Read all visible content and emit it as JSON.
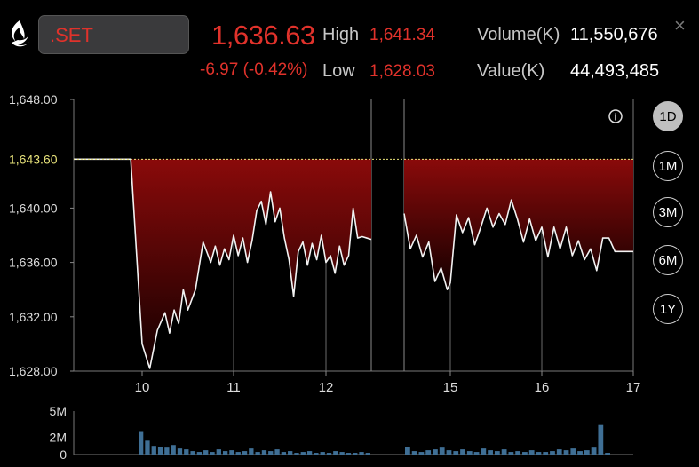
{
  "header": {
    "symbol": ".SET",
    "price": "1,636.63",
    "change": "-6.97 (-0.42%)",
    "high_label": "High",
    "high_value": "1,641.34",
    "low_label": "Low",
    "low_value": "1,628.03",
    "volume_label": "Volume(K)",
    "volume_value": "11,550,676",
    "value_label": "Value(K)",
    "value_value": "44,493,485",
    "close_glyph": "×",
    "info_glyph": "i"
  },
  "range_buttons": [
    {
      "label": "1D",
      "active": true
    },
    {
      "label": "1M",
      "active": false
    },
    {
      "label": "3M",
      "active": false
    },
    {
      "label": "6M",
      "active": false
    },
    {
      "label": "1Y",
      "active": false
    }
  ],
  "colors": {
    "down": "#e0322b",
    "prev_close": "#e8e37a",
    "fill_top": "#8a0a0a",
    "volume_bar": "#3f6f95"
  },
  "chart_data": [
    {
      "type": "area",
      "title": "",
      "x_ticks": [
        "10",
        "11",
        "12",
        "15",
        "16",
        "17"
      ],
      "y_ticks": [
        "1,628.00",
        "1,632.00",
        "1,636.00",
        "1,640.00",
        "1,648.00"
      ],
      "ylim": [
        1628,
        1648
      ],
      "prev_close": {
        "label": "1,643.60",
        "value": 1643.6
      },
      "x_range": [
        "09:30",
        "17:00"
      ],
      "series": [
        {
          "segment": "morning",
          "x": [
            "09:30",
            "09:55",
            "10:00",
            "10:05",
            "10:10",
            "10:15",
            "10:18",
            "10:21",
            "10:24",
            "10:27",
            "10:30",
            "10:35",
            "10:40",
            "10:45",
            "10:48",
            "10:51",
            "10:54",
            "10:57",
            "11:00",
            "11:03",
            "11:06",
            "11:09",
            "11:12",
            "11:15",
            "11:18",
            "11:21",
            "11:24",
            "11:27",
            "11:30",
            "11:33",
            "11:36",
            "11:39",
            "11:42",
            "11:45",
            "11:48",
            "11:51",
            "11:54",
            "11:57",
            "12:00",
            "12:03",
            "12:06",
            "12:09",
            "12:12",
            "12:15",
            "12:18",
            "12:21",
            "12:24",
            "12:27",
            "12:30"
          ],
          "values": [
            1643.6,
            1643.6,
            1630.0,
            1628.2,
            1631.0,
            1632.3,
            1630.8,
            1632.5,
            1631.5,
            1634.0,
            1632.5,
            1634.0,
            1637.5,
            1636.0,
            1637.2,
            1635.8,
            1637.0,
            1636.2,
            1638.0,
            1636.5,
            1637.8,
            1636.0,
            1637.6,
            1639.8,
            1640.5,
            1638.8,
            1641.2,
            1639.0,
            1640.0,
            1637.8,
            1636.2,
            1633.5,
            1636.8,
            1637.5,
            1635.8,
            1637.4,
            1636.2,
            1638.0,
            1636.0,
            1636.5,
            1635.2,
            1637.2,
            1635.8,
            1636.5,
            1640.0,
            1637.8,
            1637.9,
            1637.8,
            1637.7
          ]
        },
        {
          "segment": "afternoon",
          "x": [
            "14:30",
            "14:34",
            "14:38",
            "14:42",
            "14:46",
            "14:50",
            "14:54",
            "14:58",
            "15:00",
            "15:04",
            "15:08",
            "15:12",
            "15:16",
            "15:20",
            "15:24",
            "15:28",
            "15:32",
            "15:36",
            "15:40",
            "15:44",
            "15:48",
            "15:52",
            "15:56",
            "16:00",
            "16:04",
            "16:08",
            "16:12",
            "16:16",
            "16:20",
            "16:24",
            "16:28",
            "16:32",
            "16:36",
            "16:40",
            "16:44",
            "16:48",
            "16:52",
            "16:56",
            "17:00"
          ],
          "values": [
            1639.6,
            1637.0,
            1638.0,
            1636.4,
            1637.5,
            1634.6,
            1635.6,
            1634.0,
            1634.5,
            1639.5,
            1638.2,
            1639.3,
            1637.3,
            1638.6,
            1640.0,
            1638.6,
            1639.6,
            1638.8,
            1640.6,
            1639.2,
            1637.5,
            1639.2,
            1637.6,
            1638.6,
            1636.4,
            1638.6,
            1637.0,
            1638.6,
            1636.5,
            1637.6,
            1636.2,
            1637.0,
            1635.4,
            1637.8,
            1637.8,
            1636.8,
            1636.8,
            1636.8,
            1636.8
          ]
        }
      ]
    },
    {
      "type": "bar",
      "title": "",
      "y_ticks": [
        "0",
        "2M",
        "5M"
      ],
      "ylim": [
        0,
        5
      ],
      "series": [
        {
          "segment": "morning",
          "values": [
            2.6,
            1.6,
            1.0,
            0.9,
            0.8,
            1.1,
            0.7,
            0.6,
            0.4,
            0.3,
            0.5,
            0.3,
            0.6,
            0.4,
            0.5,
            0.3,
            0.4,
            0.7,
            0.3,
            0.5,
            0.4,
            0.6,
            0.3,
            0.4,
            0.2,
            0.3,
            0.4,
            0.2,
            0.3,
            0.2,
            0.4,
            0.3,
            0.2,
            0.2,
            0.3,
            0.2
          ]
        },
        {
          "segment": "afternoon",
          "values": [
            0.9,
            0.4,
            0.3,
            0.5,
            0.6,
            0.8,
            0.5,
            0.4,
            0.6,
            0.4,
            0.3,
            0.7,
            0.5,
            0.4,
            0.6,
            0.3,
            0.4,
            0.3,
            0.5,
            0.3,
            0.3,
            0.4,
            0.6,
            0.5,
            0.7,
            0.4,
            0.5,
            0.8,
            3.4,
            0.2
          ]
        }
      ]
    }
  ]
}
